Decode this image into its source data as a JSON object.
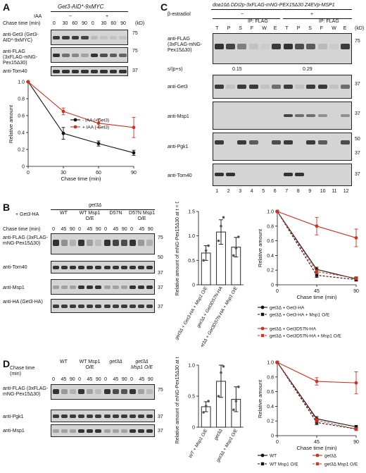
{
  "panelA": {
    "letter": "A",
    "title": "Get3-AID*-9xMYC",
    "iaa_label": "IAA",
    "iaa_minus": "−",
    "iaa_plus": "+",
    "chase_label": "Chase time (min)",
    "times": [
      "0",
      "30",
      "60",
      "90",
      "0",
      "30",
      "60",
      "90"
    ],
    "kd": "(kD)",
    "blot1_label": "anti-Get3 (Get3-AID*-9xMYC)",
    "blot1_mw": "75",
    "blot2_label": "anti-FLAG (3xFLAG-mNG-Pex15Δ30)",
    "blot2_mw": "75",
    "blot3_label": "anti-Tom40",
    "blot3_mw": "37"
  },
  "chartA": {
    "type": "line",
    "x": [
      0,
      30,
      60,
      90
    ],
    "xlabel": "Chase time (min)",
    "ylabel": "Relative amount",
    "ylim": [
      0,
      1.0
    ],
    "yticks": [
      "0",
      "0.2",
      "0.4",
      "0.6",
      "0.8",
      "1.0"
    ],
    "xticks": [
      "0",
      "30",
      "60",
      "90"
    ],
    "series": [
      {
        "name": "- IAA (+Get3)",
        "color": "#111111",
        "values": [
          1.0,
          0.39,
          0.27,
          0.16
        ],
        "err": [
          0,
          0.07,
          0.03,
          0.03
        ]
      },
      {
        "name": "+ IAA (-Get3)",
        "color": "#cc3322",
        "values": [
          1.0,
          0.65,
          0.51,
          0.46
        ],
        "err": [
          0,
          0.04,
          0.05,
          0.12
        ]
      }
    ]
  },
  "panelB": {
    "letter": "B",
    "add_label": "+ Get3-HA",
    "strain": "get3Δ",
    "groups": [
      "WT",
      "WT Msp1 O/E",
      "D57N",
      "D57N Msp1 O/E"
    ],
    "chase_label": "Chase time (min)",
    "times": [
      "0",
      "45",
      "90",
      "0",
      "45",
      "90",
      "0",
      "45",
      "90",
      "0",
      "45",
      "90"
    ],
    "blot1_label": "anti-FLAG (3xFLAG-mNG-Pex15Δ30)",
    "blot1_mw": "75",
    "blot1_mw2": "50",
    "blot2_label": "anti-Tom40",
    "blot2_mw": "37",
    "blot3_label": "anti-Msp1",
    "blot3_mw": "37",
    "blot4_label": "anti-HA (Get3-HA)",
    "blot4_mw": "37"
  },
  "barB": {
    "type": "bar",
    "ylabel": "Relative amount of mNG-Pex15Δ30 at t = 0",
    "ylim": [
      0,
      1.5
    ],
    "yticks": [
      "0",
      "0.5",
      "1.0",
      "1.5"
    ],
    "categories": [
      "get3Δ + Get3-HA + Msp1 O/E",
      "get3Δ + Get3D57N-HA",
      "get3Δ + Get3D57N-HA + Msp1 O/E"
    ],
    "values": [
      0.65,
      1.08,
      0.77
    ],
    "err": [
      0.15,
      0.25,
      0.2
    ]
  },
  "chartB": {
    "type": "line",
    "x": [
      0,
      45,
      90
    ],
    "xlabel": "Chase time (min)",
    "ylabel": "Relative amount",
    "ylim": [
      0,
      1.0
    ],
    "yticks": [
      "0",
      "0.2",
      "0.4",
      "0.6",
      "0.8",
      "1.0"
    ],
    "xticks": [
      "0",
      "45",
      "90"
    ],
    "series": [
      {
        "name": "get3Δ + Get3-HA",
        "color": "#111111",
        "dash": false,
        "values": [
          1.0,
          0.21,
          0.08
        ],
        "err": [
          0,
          0.03,
          0.02
        ]
      },
      {
        "name": "get3Δ + Get3-HA + Msp1 O/E",
        "color": "#111111",
        "dash": true,
        "values": [
          1.0,
          0.13,
          0.07
        ],
        "err": [
          0,
          0.03,
          0.02
        ]
      },
      {
        "name": "get3Δ + Get3D57N-HA",
        "color": "#cc3322",
        "dash": false,
        "values": [
          1.0,
          0.8,
          0.64
        ],
        "err": [
          0,
          0.12,
          0.12
        ]
      },
      {
        "name": "get3Δ + Get3D57N-HA + Msp1 O/E",
        "color": "#cc3322",
        "dash": true,
        "values": [
          1.0,
          0.18,
          0.09
        ],
        "err": [
          0,
          0.03,
          0.02
        ]
      }
    ]
  },
  "panelC": {
    "letter": "C",
    "title": "doa10Δ DDI2p-3xFLAG-mNG-PEX15Δ30 Z4EVp-MSP1",
    "estradiol": "β-estradiol",
    "minus": "−",
    "plus": "+",
    "ip": "IP: FLAG",
    "lane_top": [
      "T",
      "P",
      "S",
      "F",
      "W",
      "E",
      "T",
      "P",
      "S",
      "F",
      "W",
      "E"
    ],
    "kd": "(kD)",
    "ratio_label": "s/(p+s)",
    "ratio_minus": "0.15",
    "ratio_plus": "0.29",
    "blot1_label": "anti-FLAG (3xFLAG-mNG-Pex15Δ30)",
    "blot1_mw": "75",
    "blot2_label": "anti-Get3",
    "blot2_mw": "37",
    "blot3_label": "anti-Msp1",
    "blot3_mw": "37",
    "blot4_label": "anti-Pgk1",
    "blot4_mw": "50",
    "blot4_mw2": "37",
    "blot5_label": "anti-Tom40",
    "blot5_mw": "37",
    "lane_nums": [
      "1",
      "2",
      "3",
      "4",
      "5",
      "6",
      "7",
      "8",
      "9",
      "10",
      "11",
      "12"
    ]
  },
  "panelD": {
    "letter": "D",
    "groups": [
      "WT",
      "WT Msp1 O/E",
      "get3Δ",
      "get3Δ Msp1 O/E"
    ],
    "chase_label": "Chase time (min)",
    "times": [
      "0",
      "45",
      "90",
      "0",
      "45",
      "90",
      "0",
      "45",
      "90",
      "0",
      "45",
      "90"
    ],
    "blot1_label": "anti-FLAG (3xFLAG-mNG-Pex15Δ30)",
    "blot1_mw": "75",
    "blot2_label": "anti-Pgk1",
    "blot2_mw": "37",
    "blot3_label": "anti-Msp1",
    "blot3_mw": "37"
  },
  "barD": {
    "type": "bar",
    "ylabel": "Relative amount of mNG-Pex15Δ30 at t = 0",
    "ylim": [
      0,
      1.0
    ],
    "yticks": [
      "0",
      "0.5",
      "1.0"
    ],
    "categories": [
      "WT + Msp1 O/E",
      "get3Δ",
      "get3Δ + Msp1 O/E"
    ],
    "values": [
      0.33,
      0.74,
      0.45
    ],
    "err": [
      0.08,
      0.26,
      0.2
    ]
  },
  "chartD": {
    "type": "line",
    "x": [
      0,
      45,
      90
    ],
    "xlabel": "Chase time (min)",
    "ylabel": "Relative amount",
    "ylim": [
      0,
      1.0
    ],
    "yticks": [
      "0",
      "0.2",
      "0.4",
      "0.6",
      "0.8",
      "1.0"
    ],
    "xticks": [
      "0",
      "45",
      "90"
    ],
    "series": [
      {
        "name": "WT",
        "color": "#111111",
        "dash": false,
        "values": [
          1.0,
          0.23,
          0.12
        ],
        "err": [
          0,
          0.03,
          0.02
        ]
      },
      {
        "name": "WT Msp1 O/E",
        "color": "#111111",
        "dash": true,
        "values": [
          1.0,
          0.18,
          0.09
        ],
        "err": [
          0,
          0.03,
          0.02
        ]
      },
      {
        "name": "get3Δ",
        "color": "#cc3322",
        "dash": false,
        "values": [
          1.0,
          0.74,
          0.72
        ],
        "err": [
          0,
          0.05,
          0.15
        ]
      },
      {
        "name": "get3Δ Msp1 O/E",
        "color": "#cc3322",
        "dash": true,
        "values": [
          1.0,
          0.21,
          0.09
        ],
        "err": [
          0,
          0.03,
          0.02
        ]
      }
    ]
  }
}
